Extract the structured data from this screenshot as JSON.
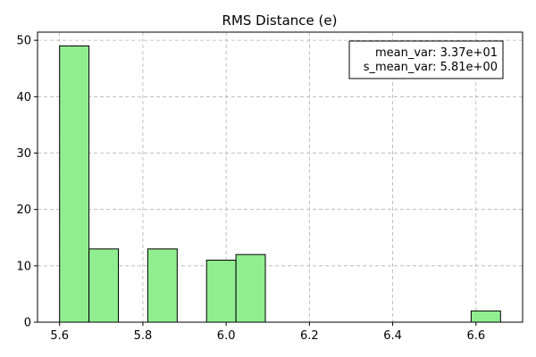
{
  "chart_data": {
    "type": "bar",
    "title": "RMS Distance (e)",
    "xlabel": "",
    "ylabel": "",
    "bin_edges": [
      5.6,
      5.6706,
      5.7412,
      5.8118,
      5.8824,
      5.953,
      6.0236,
      6.0942,
      6.1648,
      6.2354,
      6.306,
      6.3766,
      6.4472,
      6.5178,
      6.5884,
      6.659
    ],
    "counts": [
      49,
      13,
      0,
      13,
      0,
      11,
      12,
      0,
      0,
      0,
      0,
      0,
      0,
      0,
      2
    ],
    "xlim": [
      5.547,
      6.712
    ],
    "ylim": [
      0,
      51.45
    ],
    "xticks": [
      5.6,
      5.8,
      6.0,
      6.2,
      6.4,
      6.6
    ],
    "xtick_labels": [
      "5.6",
      "5.8",
      "6.0",
      "6.2",
      "6.4",
      "6.6"
    ],
    "yticks": [
      0,
      10,
      20,
      30,
      40,
      50
    ],
    "ytick_labels": [
      "0",
      "10",
      "20",
      "30",
      "40",
      "50"
    ],
    "grid": true,
    "bar_color": "#90ee90",
    "edge_color": "#000000",
    "legend": {
      "placement": "top-right",
      "lines": [
        "mean_var: 3.37e+01",
        "s_mean_var: 5.81e+00"
      ]
    }
  }
}
